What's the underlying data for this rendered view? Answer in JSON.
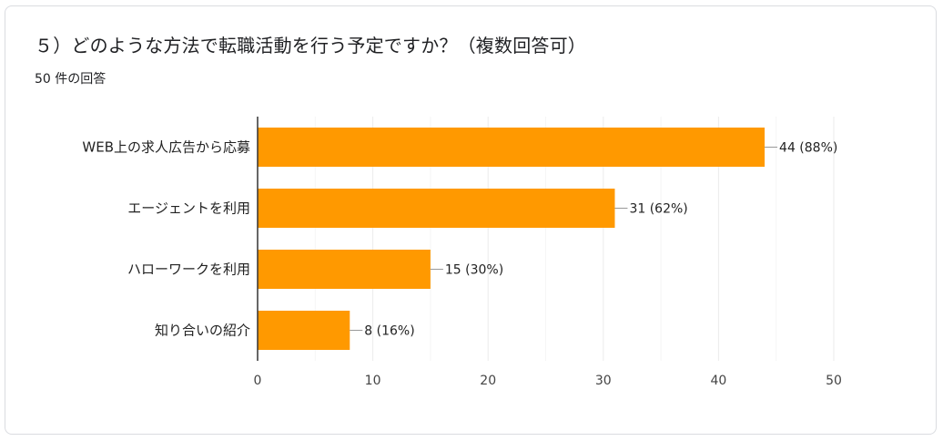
{
  "question": {
    "title": "５）どのような方法で転職活動を行う予定ですか？（複数回答可）",
    "response_count": "50 件の回答"
  },
  "colors": {
    "bar": "#ff9900",
    "grid": "#ebebeb",
    "axis": "#333333",
    "border": "#dadce0"
  },
  "chart_data": {
    "type": "bar",
    "orientation": "horizontal",
    "categories": [
      "WEB上の求人広告から応募",
      "エージェントを利用",
      "ハローワークを利用",
      "知り合いの紹介"
    ],
    "values": [
      44,
      31,
      15,
      8
    ],
    "data_labels": [
      "44 (88%)",
      "31 (62%)",
      "15 (30%)",
      "8 (16%)"
    ],
    "xlim": [
      0,
      50
    ],
    "xticks": [
      0,
      10,
      20,
      30,
      40,
      50
    ],
    "grid": true,
    "legend": "none"
  }
}
